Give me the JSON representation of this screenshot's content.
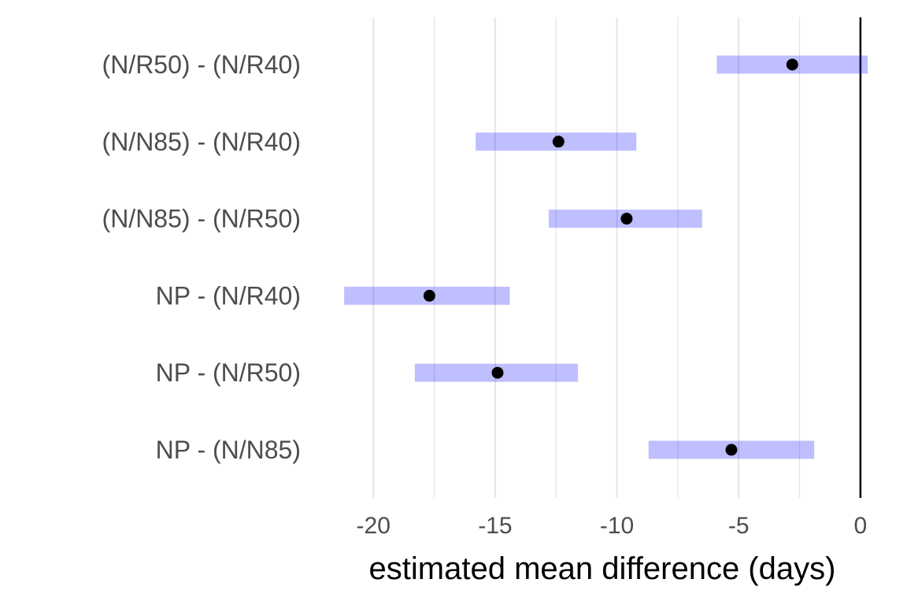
{
  "chart_data": {
    "type": "interval",
    "orientation": "horizontal",
    "categories": [
      "(N/R50) - (N/R40)",
      "(N/N85) - (N/R40)",
      "(N/N85) - (N/R50)",
      "NP - (N/R40)",
      "NP - (N/R50)",
      "NP - (N/N85)"
    ],
    "estimate": [
      -2.8,
      -12.4,
      -9.6,
      -17.7,
      -14.9,
      -5.3
    ],
    "lower": [
      -5.9,
      -15.8,
      -12.8,
      -21.2,
      -18.3,
      -8.7
    ],
    "upper": [
      0.3,
      -9.2,
      -6.5,
      -14.4,
      -11.6,
      -1.9
    ],
    "xlabel": "estimated mean difference (days)",
    "xticks": [
      -20,
      -15,
      -10,
      -5,
      0
    ],
    "xtick_labels": [
      "-20",
      "-15",
      "-10",
      "-5",
      "0"
    ],
    "xlim": [
      -22.4,
      1.2
    ],
    "reference_line": 0,
    "grid": "vertical major and minor",
    "colors": {
      "interval": "#0000ff",
      "interval_opacity": 0.25,
      "point": "#000000",
      "grid": "#e3e3e3",
      "reference": "#000000"
    }
  }
}
